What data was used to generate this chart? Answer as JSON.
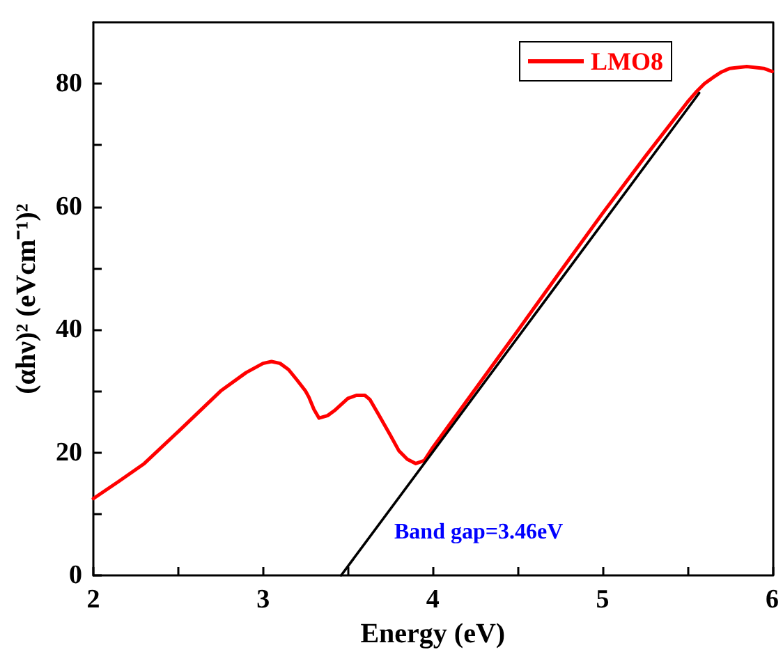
{
  "chart_data": {
    "type": "line",
    "xlabel": "Energy (eV)",
    "ylabel": "(αhν)² (eVcm⁻¹)²",
    "series": [
      {
        "name": "LMO8",
        "color": "#ff0000",
        "x": [
          2.0,
          2.15,
          2.3,
          2.5,
          2.75,
          2.9,
          3.0,
          3.05,
          3.1,
          3.15,
          3.2,
          3.25,
          3.27,
          3.3,
          3.33,
          3.38,
          3.42,
          3.5,
          3.55,
          3.6,
          3.63,
          3.68,
          3.75,
          3.8,
          3.85,
          3.9,
          3.95,
          4.0,
          4.25,
          4.5,
          4.75,
          5.0,
          5.25,
          5.5,
          5.55,
          5.6,
          5.65,
          5.7,
          5.75,
          5.85,
          5.95,
          6.0
        ],
        "values": [
          12.5,
          15.3,
          18.2,
          23.4,
          30.0,
          33.0,
          34.5,
          34.8,
          34.5,
          33.5,
          31.8,
          30.0,
          29.0,
          27.0,
          25.6,
          26.0,
          26.8,
          28.8,
          29.3,
          29.3,
          28.6,
          26.2,
          22.8,
          20.3,
          18.9,
          18.2,
          18.7,
          20.8,
          30.3,
          39.8,
          49.4,
          58.9,
          68.1,
          77.0,
          78.6,
          80.0,
          81.0,
          81.9,
          82.5,
          82.8,
          82.5,
          82.0
        ]
      },
      {
        "color": "#000000",
        "x": [
          3.46,
          5.57
        ],
        "values": [
          0,
          78.5
        ]
      }
    ],
    "xlim": [
      2,
      6
    ],
    "xticks": [
      2,
      {
        "value": 2.5,
        "label": null
      },
      3,
      {
        "value": 3.5,
        "label": null
      },
      4,
      {
        "value": 4.5,
        "label": null
      },
      5,
      {
        "value": 5.5,
        "label": null
      },
      6
    ],
    "ylim": [
      0,
      90
    ],
    "yticks": [
      0,
      {
        "value": 10,
        "label": null
      },
      20,
      {
        "value": 30,
        "label": null
      },
      40,
      {
        "value": 50,
        "label": null
      },
      60,
      {
        "value": 70,
        "label": null
      },
      80
    ],
    "annotations": [
      "Band gap=3.46eV"
    ],
    "legend": "top right",
    "grid": false,
    "marker": "none",
    "line_style": "solid"
  }
}
